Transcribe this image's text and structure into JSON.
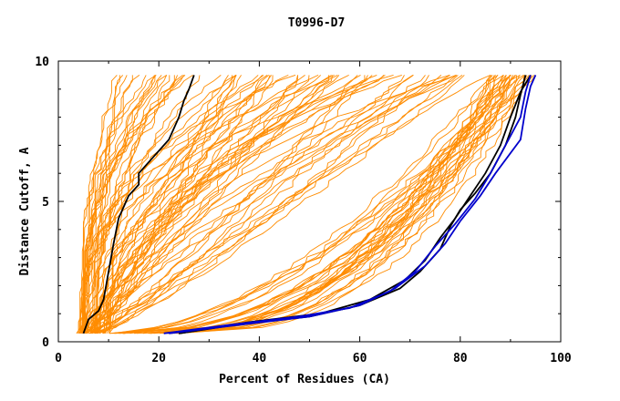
{
  "chart_data": {
    "type": "line",
    "title": "T0996-D7",
    "xlabel": "Percent of Residues (CA)",
    "ylabel": "Distance Cutoff, A",
    "xlim": [
      0,
      100
    ],
    "ylim": [
      0,
      10
    ],
    "x_ticks": [
      "0",
      "20",
      "40",
      "60",
      "80",
      "100"
    ],
    "y_ticks": [
      "0",
      "5",
      "10"
    ],
    "colors": {
      "background_lines": "#ff8c00",
      "highlight_black": "#000000",
      "highlight_blue": "#0000cc"
    },
    "background_series_count": 110,
    "highlight_series": [
      {
        "color": "#000000",
        "points": [
          [
            5,
            0.3
          ],
          [
            6,
            0.8
          ],
          [
            8,
            1.1
          ],
          [
            9,
            1.5
          ],
          [
            10,
            2.5
          ],
          [
            11,
            3.5
          ],
          [
            12,
            4.4
          ],
          [
            14,
            5.2
          ],
          [
            16,
            5.6
          ],
          [
            16,
            6.0
          ],
          [
            19,
            6.6
          ],
          [
            22,
            7.2
          ],
          [
            24,
            8.0
          ],
          [
            25,
            8.6
          ],
          [
            26,
            9.0
          ],
          [
            27,
            9.5
          ]
        ]
      },
      {
        "color": "#000000",
        "points": [
          [
            24,
            0.3
          ],
          [
            35,
            0.6
          ],
          [
            50,
            0.9
          ],
          [
            60,
            1.3
          ],
          [
            68,
            1.9
          ],
          [
            72,
            2.5
          ],
          [
            76,
            3.3
          ],
          [
            78,
            4.1
          ],
          [
            80,
            4.7
          ],
          [
            83,
            5.3
          ],
          [
            86,
            6.0
          ],
          [
            89,
            7.0
          ],
          [
            91,
            8.0
          ],
          [
            92,
            8.8
          ],
          [
            93,
            9.5
          ]
        ]
      },
      {
        "color": "#000000",
        "points": [
          [
            24,
            0.3
          ],
          [
            38,
            0.7
          ],
          [
            52,
            1.0
          ],
          [
            62,
            1.5
          ],
          [
            69,
            2.2
          ],
          [
            73,
            2.9
          ],
          [
            76,
            3.7
          ],
          [
            79,
            4.4
          ],
          [
            82,
            5.2
          ],
          [
            85,
            6.0
          ],
          [
            88,
            7.0
          ],
          [
            90,
            8.0
          ],
          [
            92,
            8.9
          ],
          [
            94,
            9.5
          ]
        ]
      },
      {
        "color": "#0000cc",
        "points": [
          [
            22,
            0.3
          ],
          [
            36,
            0.6
          ],
          [
            50,
            0.9
          ],
          [
            60,
            1.3
          ],
          [
            67,
            1.9
          ],
          [
            73,
            2.7
          ],
          [
            77,
            3.5
          ],
          [
            80,
            4.3
          ],
          [
            84,
            5.2
          ],
          [
            87,
            6.0
          ],
          [
            92,
            7.2
          ],
          [
            93,
            8.3
          ],
          [
            94,
            9.1
          ],
          [
            95,
            9.5
          ]
        ]
      },
      {
        "color": "#0000cc",
        "points": [
          [
            21,
            0.3
          ],
          [
            34,
            0.6
          ],
          [
            48,
            0.9
          ],
          [
            58,
            1.2
          ],
          [
            66,
            1.8
          ],
          [
            71,
            2.5
          ],
          [
            75,
            3.4
          ],
          [
            79,
            4.2
          ],
          [
            83,
            5.1
          ],
          [
            86,
            6.0
          ],
          [
            89,
            7.0
          ],
          [
            92,
            8.0
          ],
          [
            93,
            8.9
          ],
          [
            94,
            9.5
          ]
        ]
      }
    ]
  }
}
